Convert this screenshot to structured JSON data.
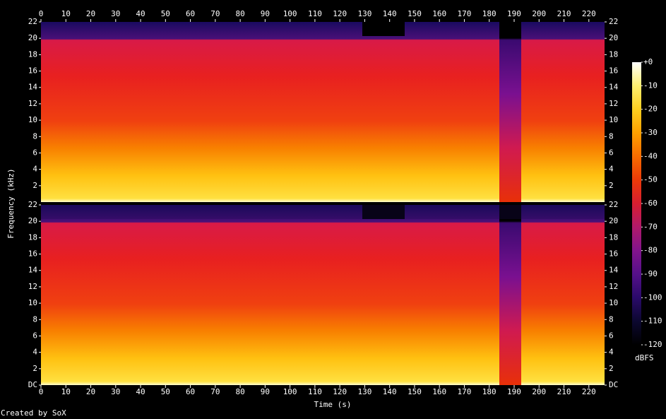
{
  "chart_data": {
    "type": "spectrogram",
    "x_label": "Time (s)",
    "y_label": "Frequency (kHz)",
    "xlim": [
      0,
      226.3
    ],
    "xticks": [
      0,
      10,
      20,
      30,
      40,
      50,
      60,
      70,
      80,
      90,
      100,
      110,
      120,
      130,
      140,
      150,
      160,
      170,
      180,
      190,
      200,
      210,
      220
    ],
    "panels": [
      {
        "ylim": [
          0,
          22
        ],
        "yticks": [
          2,
          4,
          6,
          8,
          10,
          12,
          14,
          16,
          18,
          20,
          22
        ]
      },
      {
        "ylim": [
          0,
          22
        ],
        "yticks": [
          {
            "value": 0,
            "label": "DC"
          },
          2,
          4,
          6,
          8,
          10,
          12,
          14,
          16,
          18,
          20,
          22
        ]
      }
    ],
    "colorbar": {
      "label": "dBFS",
      "lim": [
        -120,
        0
      ],
      "ticks": [
        {
          "value": 0,
          "label": "+0"
        },
        -10,
        -20,
        -30,
        -40,
        -50,
        -60,
        -70,
        -80,
        -90,
        -100,
        -110,
        -120
      ],
      "colormap": [
        "#000000",
        "#0c0830",
        "#2a0a6a",
        "#55108a",
        "#82148c",
        "#b01a6a",
        "#d81e30",
        "#ec3a08",
        "#f86c00",
        "#ffa000",
        "#ffd020",
        "#fff070",
        "#ffffff"
      ]
    }
  },
  "footer": "Created by SoX"
}
